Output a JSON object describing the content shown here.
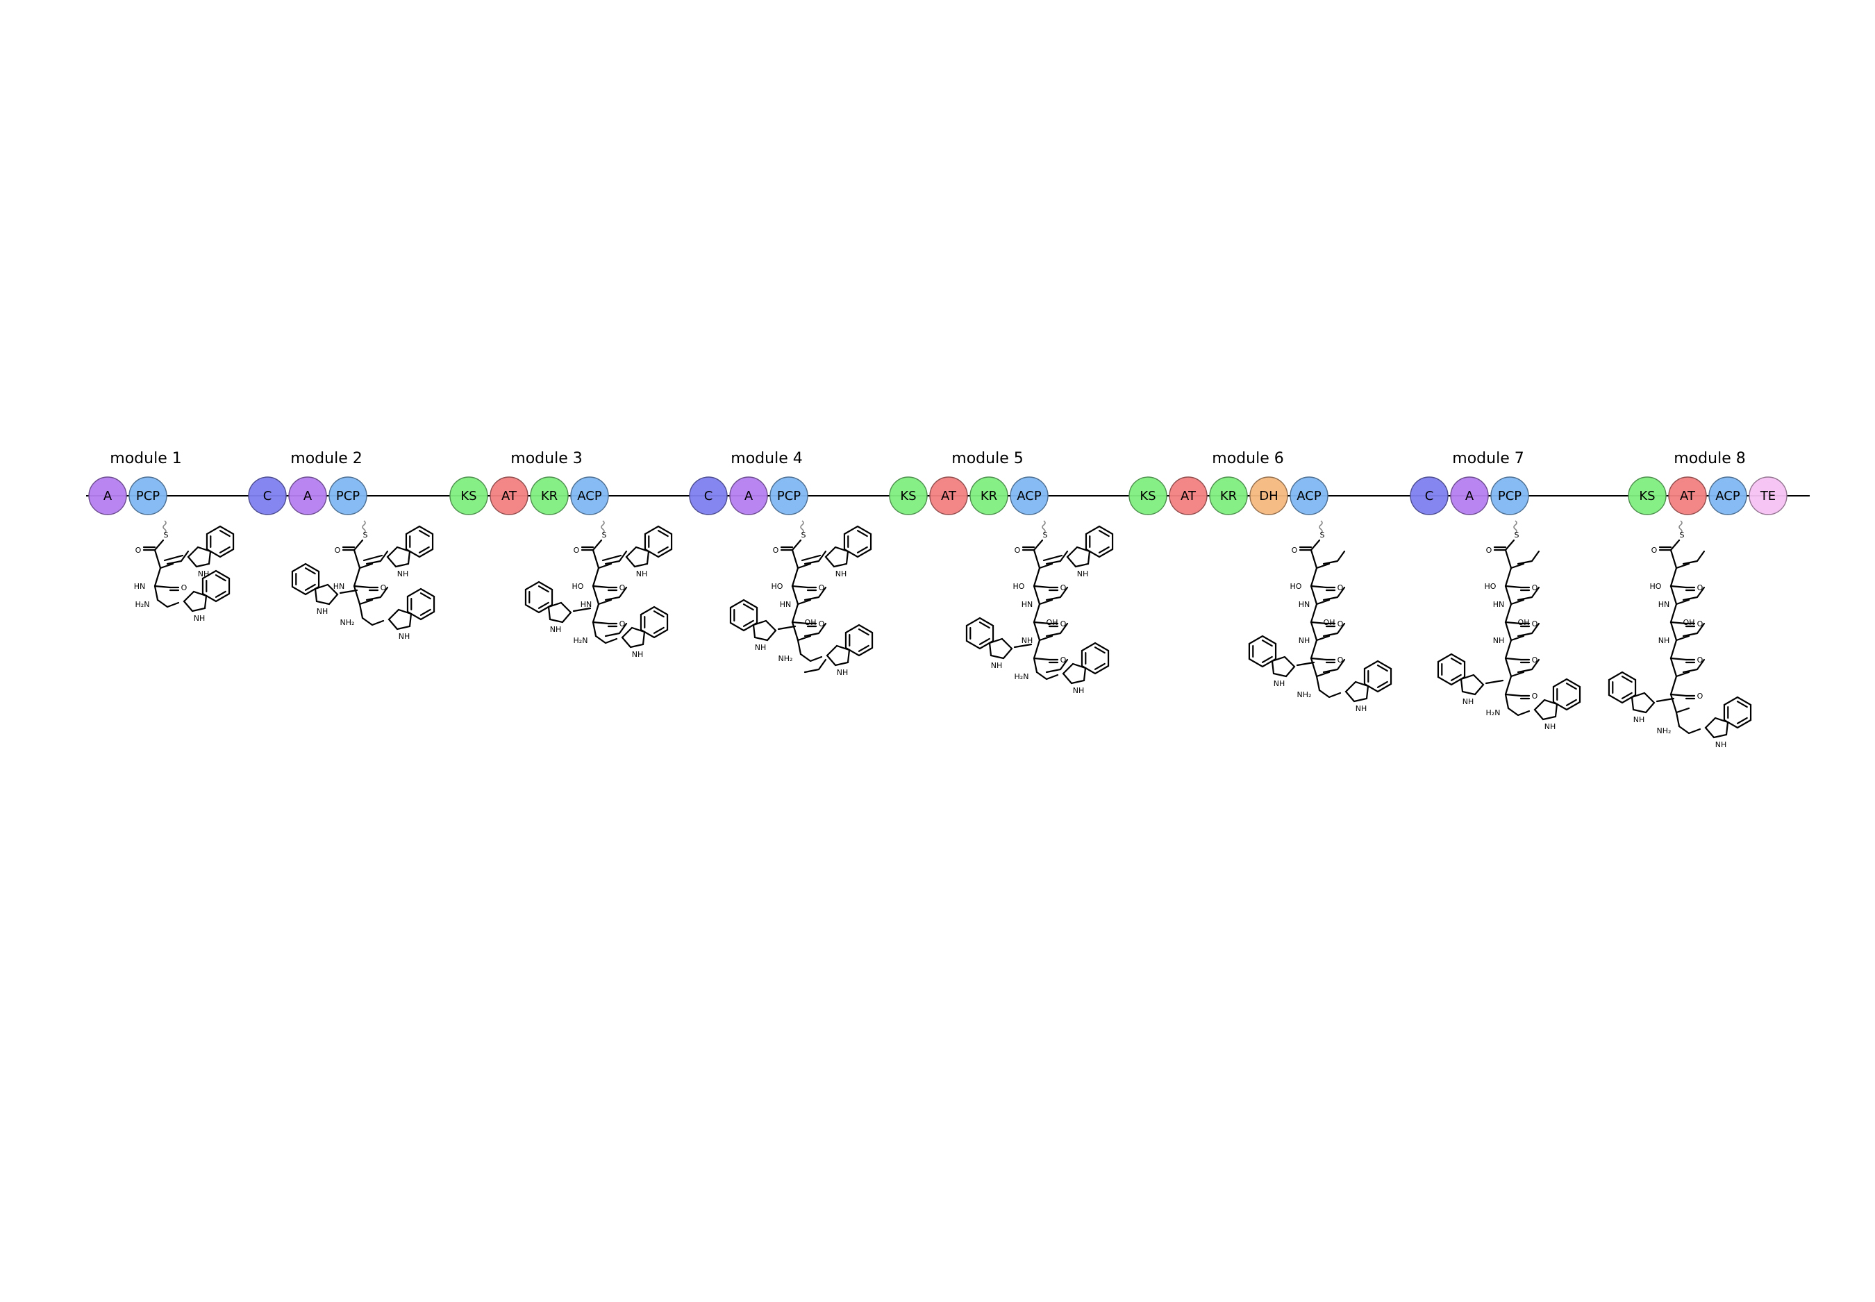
{
  "modules": [
    {
      "label": "module 1",
      "domains": [
        {
          "name": "A",
          "color": "#b57ff0"
        },
        {
          "name": "PCP",
          "color": "#7fb7f2"
        }
      ]
    },
    {
      "label": "module 2",
      "domains": [
        {
          "name": "C",
          "color": "#7f7ff0"
        },
        {
          "name": "A",
          "color": "#b57ff0"
        },
        {
          "name": "PCP",
          "color": "#7fb7f2"
        }
      ]
    },
    {
      "label": "module 3",
      "domains": [
        {
          "name": "KS",
          "color": "#80ee80"
        },
        {
          "name": "AT",
          "color": "#f28080"
        },
        {
          "name": "KR",
          "color": "#80ee80"
        },
        {
          "name": "ACP",
          "color": "#7fb7f2"
        }
      ]
    },
    {
      "label": "module 4",
      "domains": [
        {
          "name": "C",
          "color": "#7f7ff0"
        },
        {
          "name": "A",
          "color": "#b57ff0"
        },
        {
          "name": "PCP",
          "color": "#7fb7f2"
        }
      ]
    },
    {
      "label": "module 5",
      "domains": [
        {
          "name": "KS",
          "color": "#80ee80"
        },
        {
          "name": "AT",
          "color": "#f28080"
        },
        {
          "name": "KR",
          "color": "#80ee80"
        },
        {
          "name": "ACP",
          "color": "#7fb7f2"
        }
      ]
    },
    {
      "label": "module 6",
      "domains": [
        {
          "name": "KS",
          "color": "#80ee80"
        },
        {
          "name": "AT",
          "color": "#f28080"
        },
        {
          "name": "KR",
          "color": "#80ee80"
        },
        {
          "name": "DH",
          "color": "#f5b87f"
        },
        {
          "name": "ACP",
          "color": "#7fb7f2"
        }
      ]
    },
    {
      "label": "module 7",
      "domains": [
        {
          "name": "C",
          "color": "#7f7ff0"
        },
        {
          "name": "A",
          "color": "#b57ff0"
        },
        {
          "name": "PCP",
          "color": "#7fb7f2"
        }
      ]
    },
    {
      "label": "module 8",
      "domains": [
        {
          "name": "KS",
          "color": "#80ee80"
        },
        {
          "name": "AT",
          "color": "#f28080"
        },
        {
          "name": "ACP",
          "color": "#7fb7f2"
        },
        {
          "name": "TE",
          "color": "#f5c2f2"
        }
      ]
    }
  ],
  "atom_labels": {
    "s": "S",
    "o": "O",
    "nh": "NH",
    "hn": "HN",
    "h2n": "H₂N",
    "nh2": "NH₂",
    "ho": "HO",
    "oh": "OH"
  }
}
